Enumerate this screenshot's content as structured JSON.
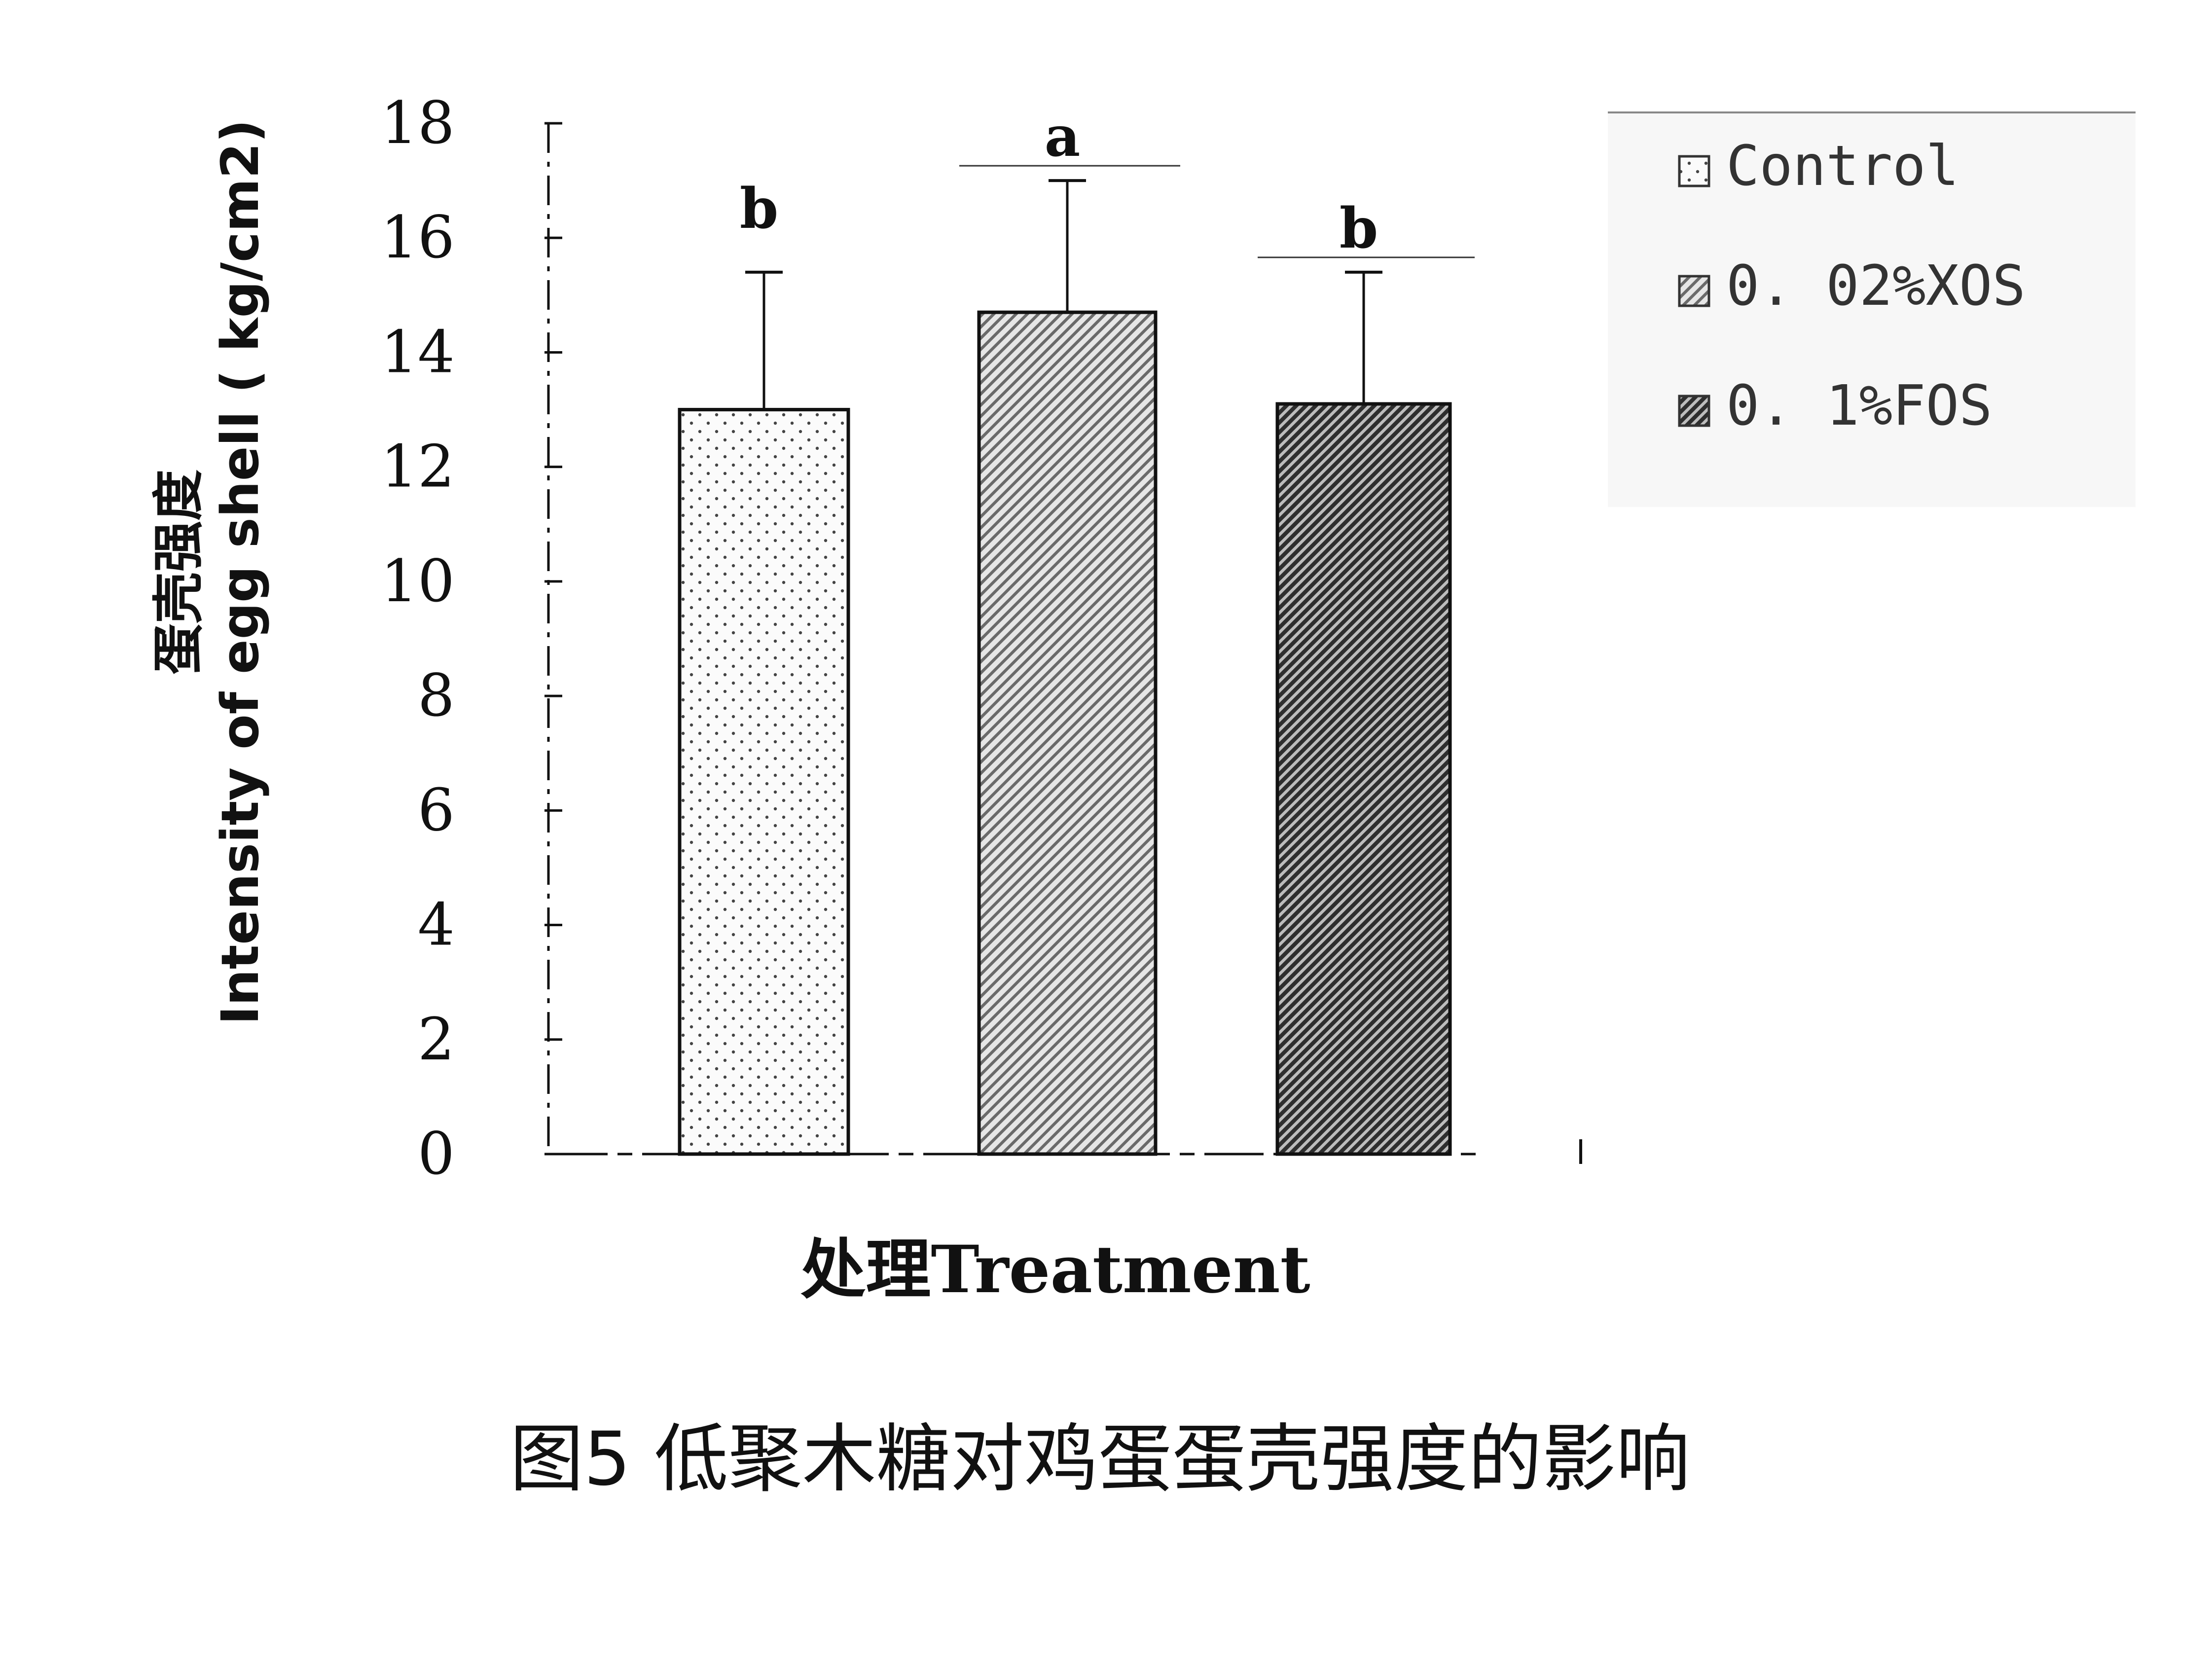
{
  "chart_data": {
    "type": "bar",
    "categories": [
      "Control",
      "0.02%XOS",
      "0.1%FOS"
    ],
    "series": [
      {
        "name": "蛋壳强度 Intensity of egg shell",
        "values": [
          13.0,
          14.7,
          13.1
        ],
        "error": [
          2.4,
          2.3,
          2.3
        ],
        "significance": [
          "b",
          "a",
          "b"
        ]
      }
    ],
    "legend": {
      "position": "top-right",
      "entries": [
        "Control",
        "0. 02%XOS",
        "0. 1%FOS"
      ]
    },
    "ylabel_cn": "蛋壳强度",
    "ylabel_en": "Intensity of egg shell ( kg/cm2)",
    "xlabel": "处理Treatment",
    "ylim": [
      0,
      18
    ],
    "yticks": [
      0,
      2,
      4,
      6,
      8,
      10,
      12,
      14,
      16,
      18
    ],
    "grid": false
  },
  "caption": "图5 低聚木糖对鸡蛋蛋壳强度的影响",
  "colors": {
    "axis": "#111111",
    "bar_outline": "#111111",
    "legend_frame": "#888888",
    "legend_bg": "#f7f7f7"
  },
  "patterns": [
    "dots-icon",
    "light-hatch-icon",
    "dark-hatch-icon"
  ]
}
